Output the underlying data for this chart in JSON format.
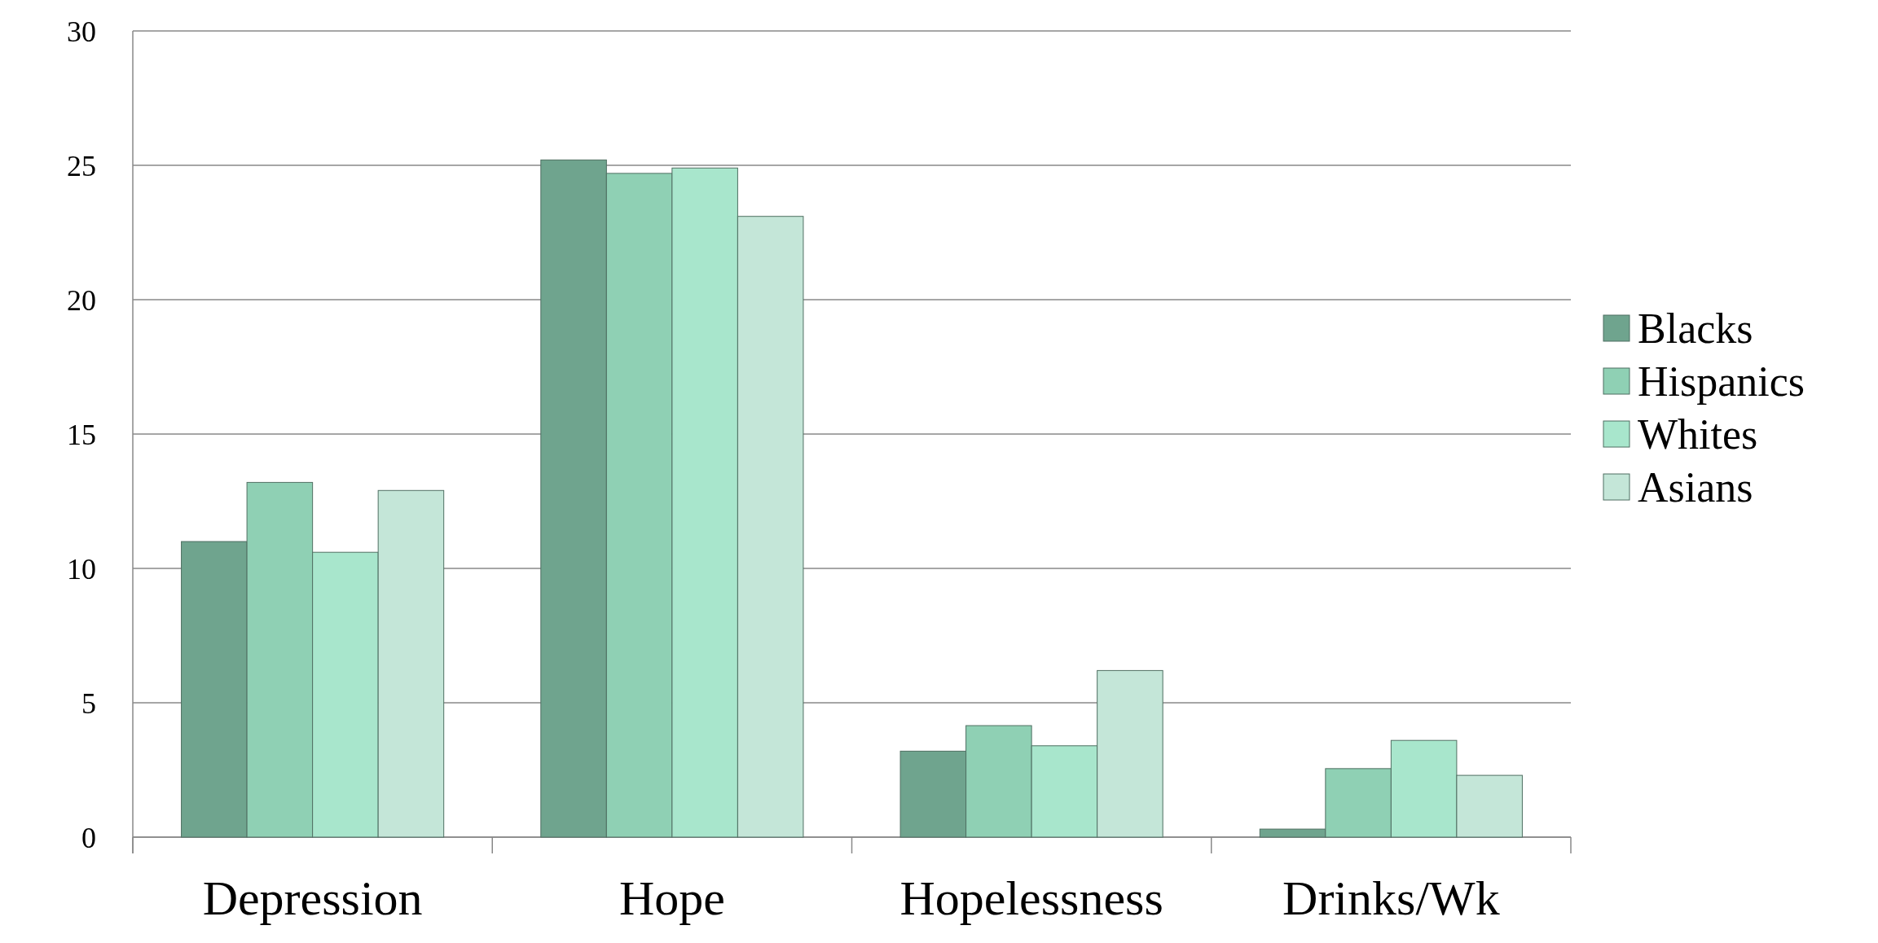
{
  "chart_data": {
    "type": "bar",
    "categories": [
      "Depression",
      "Hope",
      "Hopelessness",
      "Drinks/Wk"
    ],
    "series": [
      {
        "name": "Blacks",
        "color": "#6fa48e",
        "values": [
          11.0,
          25.2,
          3.2,
          0.3
        ]
      },
      {
        "name": "Hispanics",
        "color": "#8fd0b4",
        "values": [
          13.2,
          24.7,
          4.15,
          2.55
        ]
      },
      {
        "name": "Whites",
        "color": "#a8e6cc",
        "values": [
          10.6,
          24.9,
          3.4,
          3.6
        ]
      },
      {
        "name": "Asians",
        "color": "#c4e6d8",
        "values": [
          12.9,
          23.1,
          6.2,
          2.3
        ]
      }
    ],
    "ylim": [
      0,
      30
    ],
    "yticks": [
      0,
      5,
      10,
      15,
      20,
      25,
      30
    ],
    "grid": "y",
    "legend": "right"
  }
}
